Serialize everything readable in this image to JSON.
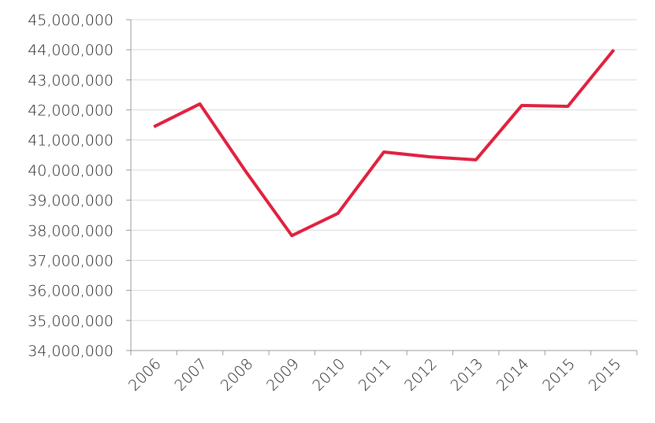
{
  "chart_data": {
    "type": "line",
    "categories": [
      "2006",
      "2007",
      "2008",
      "2009",
      "2010",
      "2011",
      "2012",
      "2013",
      "2014",
      "2015",
      "2015"
    ],
    "series": [
      {
        "color": "#e0213f",
        "values": [
          41440000,
          42200000,
          39950000,
          37820000,
          38560000,
          40600000,
          40440000,
          40340000,
          42150000,
          42120000,
          44000000
        ]
      }
    ],
    "ylim": [
      34000000,
      45000000
    ],
    "yticks": [
      {
        "value": 34000000,
        "label": "34,000,000"
      },
      {
        "value": 35000000,
        "label": "35,000,000"
      },
      {
        "value": 36000000,
        "label": "36,000,000"
      },
      {
        "value": 37000000,
        "label": "37,000,000"
      },
      {
        "value": 38000000,
        "label": "38,000,000"
      },
      {
        "value": 39000000,
        "label": "39,000,000"
      },
      {
        "value": 40000000,
        "label": "40,000,000"
      },
      {
        "value": 41000000,
        "label": "41,000,000"
      },
      {
        "value": 42000000,
        "label": "42,000,000"
      },
      {
        "value": 43000000,
        "label": "43,000,000"
      },
      {
        "value": 44000000,
        "label": "44,000,000"
      },
      {
        "value": 45000000,
        "label": "45,000,000"
      }
    ],
    "grid": true
  }
}
